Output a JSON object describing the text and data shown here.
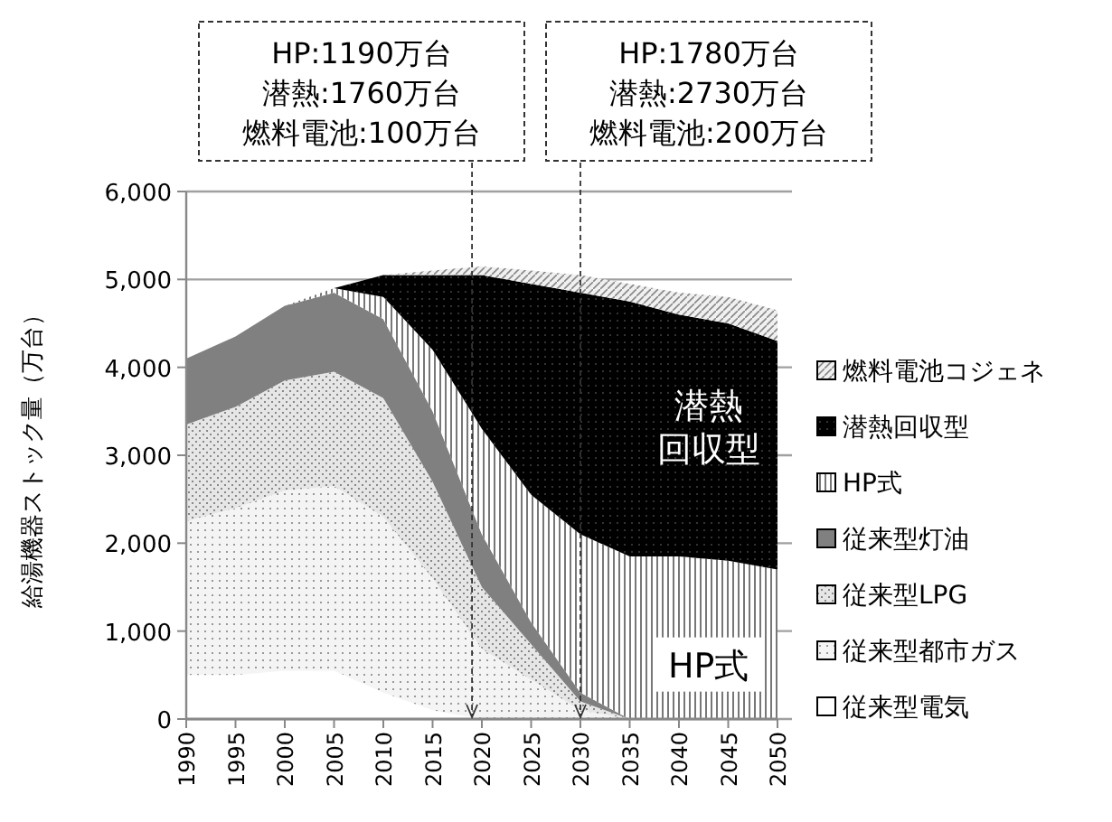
{
  "chart_data": {
    "type": "area",
    "stacked": true,
    "ylabel": "給湯機器ストック量（万台）",
    "x": [
      1990,
      1995,
      2000,
      2005,
      2010,
      2015,
      2020,
      2025,
      2030,
      2035,
      2040,
      2045,
      2050
    ],
    "series": [
      {
        "name": "従来型電気",
        "color": "#ffffff",
        "values": [
          500,
          500,
          550,
          550,
          300,
          100,
          0,
          0,
          0,
          0,
          0,
          0,
          0
        ]
      },
      {
        "name": "従来型都市ガス",
        "color": "#f4f4f4",
        "values": [
          1750,
          1900,
          2050,
          2100,
          2000,
          1500,
          800,
          450,
          100,
          0,
          0,
          0,
          0
        ]
      },
      {
        "name": "従来型LPG",
        "color": "#e6e6e6",
        "values": [
          1100,
          1150,
          1250,
          1300,
          1350,
          1100,
          700,
          400,
          100,
          0,
          0,
          0,
          0
        ]
      },
      {
        "name": "従来型灯油",
        "color": "#808080",
        "values": [
          750,
          800,
          850,
          900,
          900,
          800,
          600,
          250,
          100,
          0,
          0,
          0,
          0
        ]
      },
      {
        "name": "HP式",
        "color": "#ffffff",
        "values": [
          0,
          0,
          0,
          50,
          250,
          700,
          1200,
          1450,
          1800,
          1850,
          1850,
          1800,
          1700
        ]
      },
      {
        "name": "潜熱回収型",
        "color": "#000000",
        "values": [
          0,
          0,
          0,
          0,
          250,
          850,
          1750,
          2400,
          2750,
          2900,
          2750,
          2700,
          2600
        ]
      },
      {
        "name": "燃料電池コジェネ",
        "color": "#f0f0f0",
        "values": [
          0,
          0,
          0,
          0,
          0,
          50,
          100,
          150,
          200,
          200,
          250,
          300,
          350
        ]
      }
    ],
    "xlim": [
      1990,
      2050
    ],
    "xticks": [
      1990,
      1995,
      2000,
      2005,
      2010,
      2015,
      2020,
      2025,
      2030,
      2035,
      2040,
      2045,
      2050
    ],
    "ylim": [
      0,
      6000
    ],
    "yticks": [
      0,
      {
        "value": 1000,
        "label": "1,000"
      },
      {
        "value": 2000,
        "label": "2,000"
      },
      {
        "value": 3000,
        "label": "3,000"
      },
      {
        "value": 4000,
        "label": "4,000"
      },
      {
        "value": 5000,
        "label": "5,000"
      },
      {
        "value": 6000,
        "label": "6,000"
      }
    ],
    "grid": "y",
    "legend": "right",
    "ref_lines": [
      {
        "axis": "x",
        "value": 2019,
        "line_style": "dashed"
      },
      {
        "axis": "x",
        "value": 2030,
        "line_style": "dashed"
      }
    ],
    "annotations": [
      "HP:1190万台",
      "潜熱:1760万台",
      "燃料電池:100万台",
      "HP:1780万台",
      "潜熱:2730万台",
      "燃料電池:200万台",
      "潜熱",
      "回収型",
      "HP式"
    ]
  }
}
